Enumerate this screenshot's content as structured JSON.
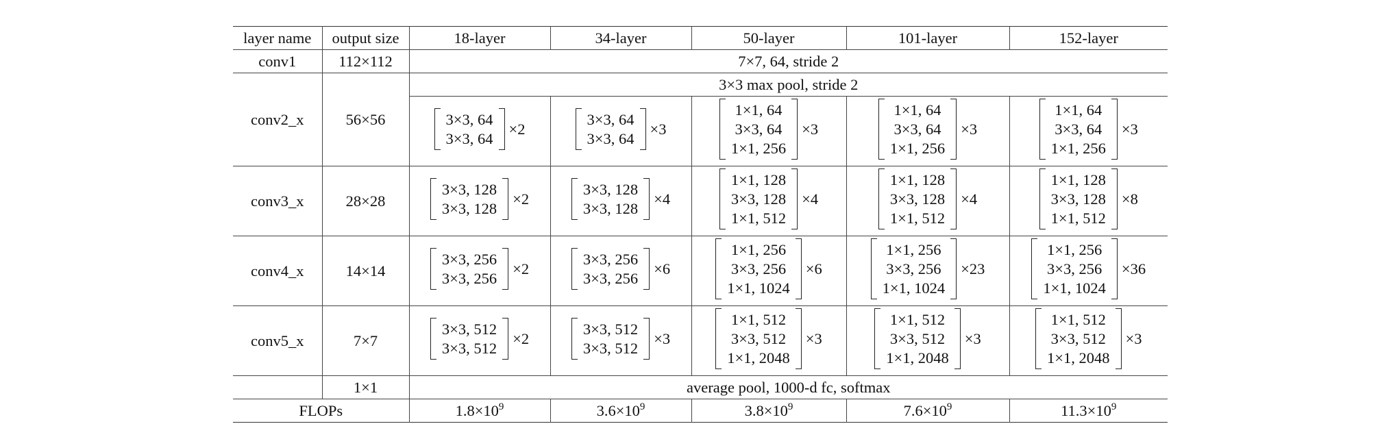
{
  "headers": [
    "layer name",
    "output size",
    "18-layer",
    "34-layer",
    "50-layer",
    "101-layer",
    "152-layer"
  ],
  "conv1": {
    "name": "conv1",
    "out": "112×112",
    "spec": "7×7, 64, stride 2"
  },
  "pool": {
    "spec": "3×3 max pool, stride 2"
  },
  "stages": [
    {
      "name": "conv2_x",
      "out": "56×56",
      "cells": [
        {
          "lines": [
            "3×3, 64",
            "3×3, 64"
          ],
          "mult": "×2"
        },
        {
          "lines": [
            "3×3, 64",
            "3×3, 64"
          ],
          "mult": "×3"
        },
        {
          "lines": [
            "1×1, 64",
            "3×3, 64",
            "1×1, 256"
          ],
          "mult": "×3"
        },
        {
          "lines": [
            "1×1, 64",
            "3×3, 64",
            "1×1, 256"
          ],
          "mult": "×3"
        },
        {
          "lines": [
            "1×1, 64",
            "3×3, 64",
            "1×1, 256"
          ],
          "mult": "×3"
        }
      ]
    },
    {
      "name": "conv3_x",
      "out": "28×28",
      "cells": [
        {
          "lines": [
            "3×3, 128",
            "3×3, 128"
          ],
          "mult": "×2"
        },
        {
          "lines": [
            "3×3, 128",
            "3×3, 128"
          ],
          "mult": "×4"
        },
        {
          "lines": [
            "1×1, 128",
            "3×3, 128",
            "1×1, 512"
          ],
          "mult": "×4"
        },
        {
          "lines": [
            "1×1, 128",
            "3×3, 128",
            "1×1, 512"
          ],
          "mult": "×4"
        },
        {
          "lines": [
            "1×1, 128",
            "3×3, 128",
            "1×1, 512"
          ],
          "mult": "×8"
        }
      ]
    },
    {
      "name": "conv4_x",
      "out": "14×14",
      "cells": [
        {
          "lines": [
            "3×3, 256",
            "3×3, 256"
          ],
          "mult": "×2"
        },
        {
          "lines": [
            "3×3, 256",
            "3×3, 256"
          ],
          "mult": "×6"
        },
        {
          "lines": [
            "1×1, 256",
            "3×3, 256",
            "1×1, 1024"
          ],
          "mult": "×6"
        },
        {
          "lines": [
            "1×1, 256",
            "3×3, 256",
            "1×1, 1024"
          ],
          "mult": "×23"
        },
        {
          "lines": [
            "1×1, 256",
            "3×3, 256",
            "1×1, 1024"
          ],
          "mult": "×36"
        }
      ]
    },
    {
      "name": "conv5_x",
      "out": "7×7",
      "cells": [
        {
          "lines": [
            "3×3, 512",
            "3×3, 512"
          ],
          "mult": "×2"
        },
        {
          "lines": [
            "3×3, 512",
            "3×3, 512"
          ],
          "mult": "×3"
        },
        {
          "lines": [
            "1×1, 512",
            "3×3, 512",
            "1×1, 2048"
          ],
          "mult": "×3"
        },
        {
          "lines": [
            "1×1, 512",
            "3×3, 512",
            "1×1, 2048"
          ],
          "mult": "×3"
        },
        {
          "lines": [
            "1×1, 512",
            "3×3, 512",
            "1×1, 2048"
          ],
          "mult": "×3"
        }
      ]
    }
  ],
  "final": {
    "out": "1×1",
    "spec": "average pool, 1000-d fc, softmax"
  },
  "flops": {
    "label": "FLOPs",
    "values": [
      {
        "mantissa": "1.8×10",
        "exp": "9"
      },
      {
        "mantissa": "3.6×10",
        "exp": "9"
      },
      {
        "mantissa": "3.8×10",
        "exp": "9"
      },
      {
        "mantissa": "7.6×10",
        "exp": "9"
      },
      {
        "mantissa": "11.3×10",
        "exp": "9"
      }
    ]
  }
}
